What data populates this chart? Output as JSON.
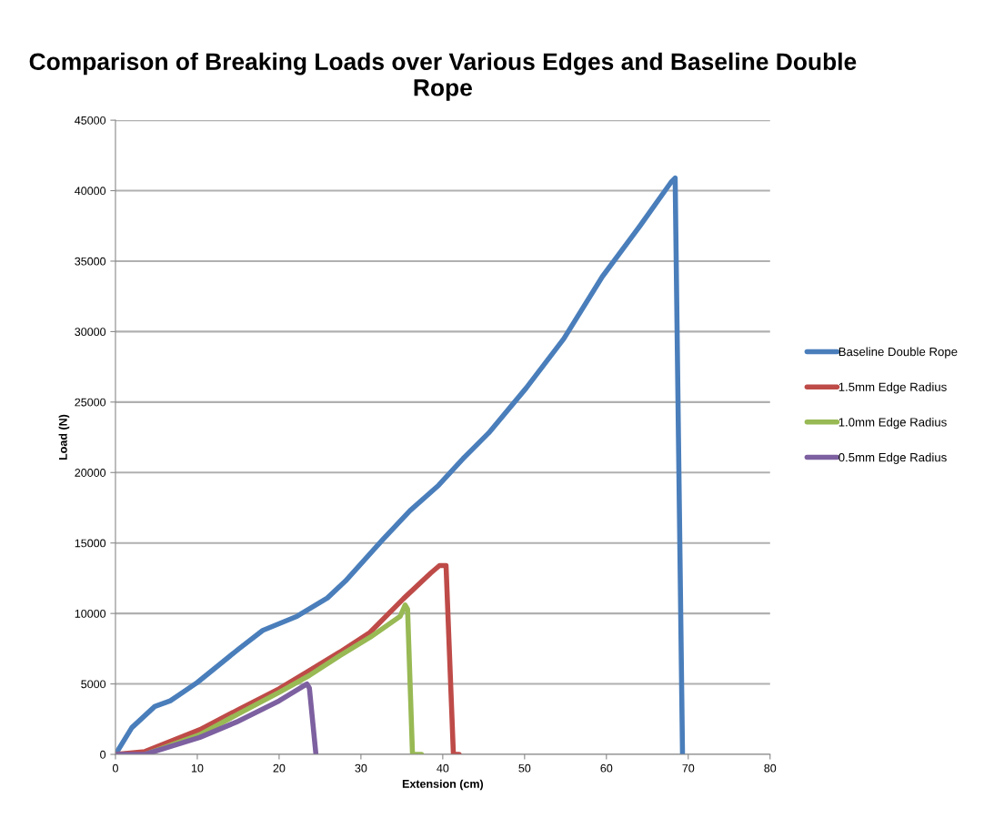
{
  "chart_data": {
    "type": "line",
    "title": "Comparison of Breaking Loads over Various Edges and Baseline Double Rope",
    "xlabel": "Extension (cm)",
    "ylabel": "Load (N)",
    "xlim": [
      0,
      80
    ],
    "xticks": [
      0,
      10,
      20,
      30,
      40,
      50,
      60,
      70,
      80
    ],
    "ylim": [
      0,
      45000
    ],
    "yticks": [
      0,
      5000,
      10000,
      15000,
      20000,
      25000,
      30000,
      35000,
      40000,
      45000
    ],
    "grid": "y",
    "legend": "right",
    "marker": "none",
    "line_style": "solid",
    "series": [
      {
        "name": "Baseline Double Rope",
        "color": "#4a7ebb",
        "x": [
          0,
          2,
          4.8,
          6.7,
          10,
          15.1,
          18,
          22.2,
          25.9,
          28.1,
          32.6,
          36,
          39.5,
          42.5,
          45.6,
          50.2,
          54.8,
          59.5,
          64.1,
          67.9,
          68.4,
          69.3
        ],
        "values": [
          0,
          1900,
          3400,
          3800,
          5100,
          7500,
          8800,
          9800,
          11100,
          12300,
          15200,
          17300,
          19100,
          21000,
          22800,
          26000,
          29500,
          33900,
          37500,
          40600,
          40900,
          0
        ]
      },
      {
        "name": "1.5mm Edge Radius",
        "color": "#be4b48",
        "x": [
          0,
          3.6,
          10.3,
          15.1,
          20,
          23.7,
          27.4,
          31.1,
          35.2,
          38.5,
          39.6,
          40.4,
          41.3,
          42
        ],
        "values": [
          0,
          200,
          1750,
          3200,
          4650,
          5950,
          7250,
          8650,
          11050,
          12850,
          13400,
          13400,
          0,
          0
        ]
      },
      {
        "name": "1.0mm Edge Radius",
        "color": "#98b954",
        "x": [
          3.6,
          10.3,
          15.1,
          20,
          23.7,
          27.4,
          31.1,
          34.8,
          35.4,
          35.7,
          36.3,
          37.4
        ],
        "values": [
          0,
          1400,
          2900,
          4400,
          5600,
          7000,
          8300,
          9800,
          10600,
          10300,
          0,
          0
        ]
      },
      {
        "name": "0.5mm Edge Radius",
        "color": "#7d60a0",
        "x": [
          0,
          3.6,
          10.3,
          14.8,
          20,
          23.4,
          23.7,
          24.5
        ],
        "values": [
          0,
          0,
          1200,
          2300,
          3800,
          5000,
          4700,
          0
        ]
      }
    ]
  }
}
